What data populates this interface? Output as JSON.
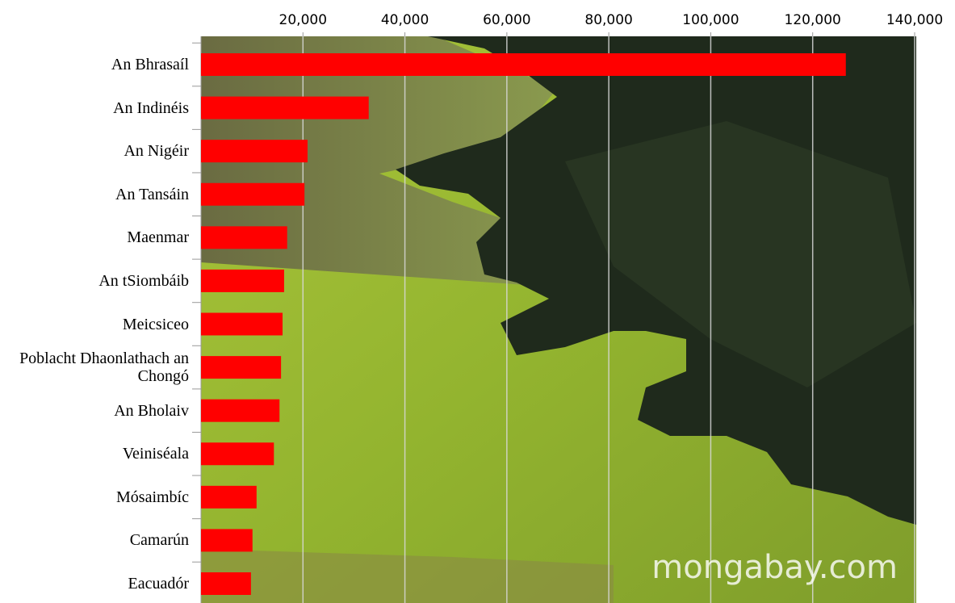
{
  "chart_data": {
    "type": "bar",
    "orientation": "horizontal",
    "categories": [
      "An Bhrasaíl",
      "An Indinéis",
      "An Nigéir",
      "An Tansáin",
      "Maenmar",
      "An tSiombáib",
      "Meicsiceo",
      "Poblacht Dhaonlathach an Chongó",
      "An Bholaiv",
      "Veiniséala",
      "Mósaimbíc",
      "Camarún",
      "Eacuadór"
    ],
    "values": [
      126500,
      32900,
      20900,
      20300,
      16900,
      16300,
      16000,
      15700,
      15400,
      14300,
      10900,
      10100,
      9800
    ],
    "color": "#ff0000",
    "xlim": [
      0,
      140000
    ],
    "xticks": [
      {
        "value": 20000,
        "label": "20,000"
      },
      {
        "value": 40000,
        "label": "40,000"
      },
      {
        "value": 60000,
        "label": "60,000"
      },
      {
        "value": 80000,
        "label": "80,000"
      },
      {
        "value": 100000,
        "label": "100,000"
      },
      {
        "value": 120000,
        "label": "120,000"
      },
      {
        "value": 140000,
        "label": "140,000"
      }
    ],
    "grid": true,
    "watermark": "mongabay.com"
  }
}
